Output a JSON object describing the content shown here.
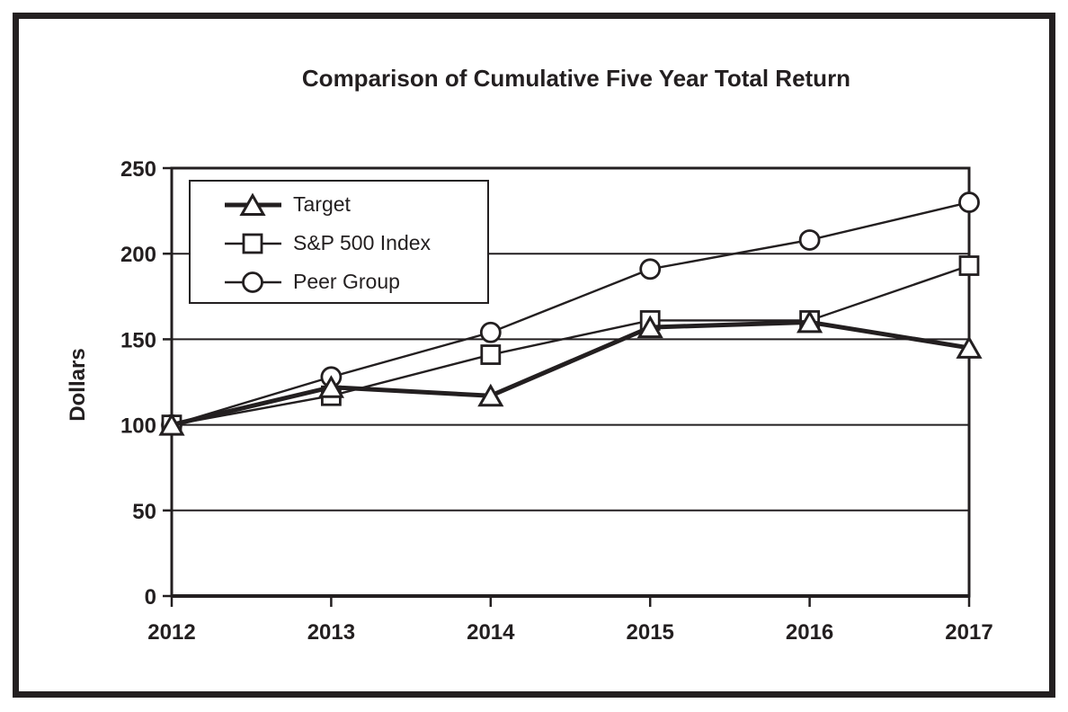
{
  "page": {
    "background_color": "#ffffff",
    "ink_color": "#231f20"
  },
  "chart_data": {
    "type": "line",
    "title": "Comparison of Cumulative Five Year Total Return",
    "xlabel": "",
    "ylabel": "Dollars",
    "categories": [
      "2012",
      "2013",
      "2014",
      "2015",
      "2016",
      "2017"
    ],
    "series": [
      {
        "name": "Target",
        "marker": "triangle",
        "line_style": "thick",
        "values": [
          100,
          122,
          117,
          157,
          160,
          145
        ]
      },
      {
        "name": "S&P 500 Index",
        "marker": "square",
        "line_style": "thin",
        "values": [
          100,
          117,
          141,
          161,
          161,
          193
        ]
      },
      {
        "name": "Peer Group",
        "marker": "circle",
        "line_style": "thin",
        "values": [
          100,
          128,
          154,
          191,
          208,
          230
        ]
      }
    ],
    "ylim": [
      0,
      250
    ],
    "yticks": [
      0,
      50,
      100,
      150,
      200,
      250
    ],
    "grid": true,
    "gridlines": "horizontal",
    "legend_position": "upper-left-inside",
    "line_color": "#231f20",
    "marker_fill": "#ffffff",
    "background": "#ffffff"
  }
}
